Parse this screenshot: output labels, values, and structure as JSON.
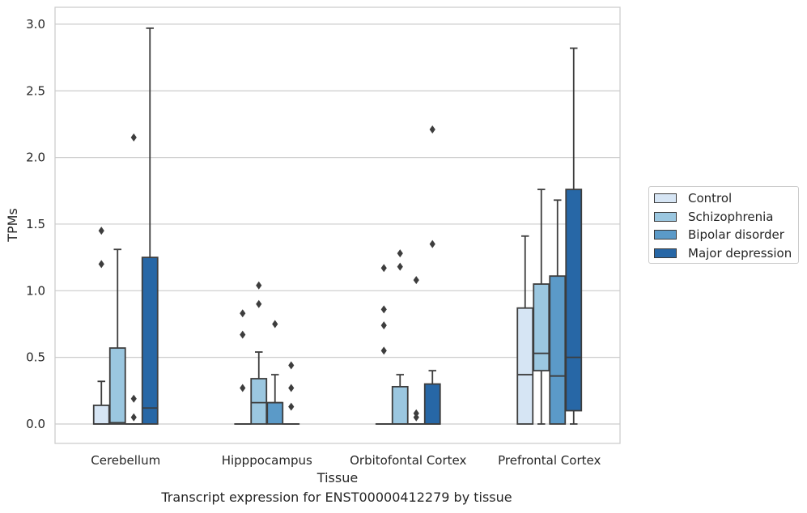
{
  "chart_data": {
    "type": "boxplot",
    "caption": "Transcript expression for ENST00000412279 by tissue",
    "xlabel": "Tissue",
    "ylabel": "TPMs",
    "ylim": [
      -0.15,
      3.12
    ],
    "yticks": [
      0.0,
      0.5,
      1.0,
      1.5,
      2.0,
      2.5,
      3.0
    ],
    "ytick_labels": [
      "0.0",
      "0.5",
      "1.0",
      "1.5",
      "2.0",
      "2.5",
      "3.0"
    ],
    "grid": "horizontal",
    "legend_position": "right",
    "categories": [
      "Cerebellum",
      "Hipppocampus",
      "Orbitofontal Cortex",
      "Prefrontal Cortex"
    ],
    "series": [
      {
        "name": "Control",
        "color": "#d6e5f4",
        "boxes": [
          {
            "min": 0.0,
            "q1": 0.0,
            "median": 0.0,
            "q3": 0.14,
            "max": 0.32,
            "outliers": [
              1.2,
              1.45
            ]
          },
          {
            "min": 0.0,
            "q1": 0.0,
            "median": 0.0,
            "q3": 0.0,
            "max": 0.0,
            "outliers": [
              0.27,
              0.67,
              0.83
            ]
          },
          {
            "min": 0.0,
            "q1": 0.0,
            "median": 0.0,
            "q3": 0.0,
            "max": 0.0,
            "outliers": [
              0.55,
              0.74,
              0.86,
              1.17
            ]
          },
          {
            "min": 0.0,
            "q1": 0.0,
            "median": 0.37,
            "q3": 0.87,
            "max": 1.41,
            "outliers": []
          }
        ]
      },
      {
        "name": "Schizophrenia",
        "color": "#9bc7e0",
        "boxes": [
          {
            "min": 0.0,
            "q1": 0.0,
            "median": 0.01,
            "q3": 0.57,
            "max": 1.31,
            "outliers": []
          },
          {
            "min": 0.0,
            "q1": 0.0,
            "median": 0.16,
            "q3": 0.34,
            "max": 0.54,
            "outliers": [
              0.9,
              1.04
            ]
          },
          {
            "min": 0.0,
            "q1": 0.0,
            "median": 0.0,
            "q3": 0.28,
            "max": 0.37,
            "outliers": [
              1.18,
              1.28
            ]
          },
          {
            "min": 0.0,
            "q1": 0.4,
            "median": 0.53,
            "q3": 1.05,
            "max": 1.76,
            "outliers": []
          }
        ]
      },
      {
        "name": "Bipolar disorder",
        "color": "#5b9ac8",
        "boxes": [
          {
            "min": 0.0,
            "q1": 0.0,
            "median": 0.0,
            "q3": 0.0,
            "max": 0.0,
            "outliers": [
              0.05,
              0.19,
              2.15
            ]
          },
          {
            "min": 0.0,
            "q1": 0.0,
            "median": 0.16,
            "q3": 0.16,
            "max": 0.37,
            "outliers": [
              0.75
            ]
          },
          {
            "min": 0.0,
            "q1": 0.0,
            "median": 0.0,
            "q3": 0.0,
            "max": 0.0,
            "outliers": [
              0.05,
              0.08,
              1.08
            ]
          },
          {
            "min": 0.0,
            "q1": 0.0,
            "median": 0.36,
            "q3": 1.11,
            "max": 1.68,
            "outliers": []
          }
        ]
      },
      {
        "name": "Major depression",
        "color": "#2767a6",
        "boxes": [
          {
            "min": 0.0,
            "q1": 0.0,
            "median": 0.12,
            "q3": 1.25,
            "max": 2.97,
            "outliers": []
          },
          {
            "min": 0.0,
            "q1": 0.0,
            "median": 0.0,
            "q3": 0.0,
            "max": 0.0,
            "outliers": [
              0.13,
              0.27,
              0.44
            ]
          },
          {
            "min": 0.0,
            "q1": 0.0,
            "median": 0.0,
            "q3": 0.3,
            "max": 0.4,
            "outliers": [
              1.35,
              2.21
            ]
          },
          {
            "min": 0.0,
            "q1": 0.1,
            "median": 0.5,
            "q3": 1.76,
            "max": 2.82,
            "outliers": []
          }
        ]
      }
    ]
  }
}
